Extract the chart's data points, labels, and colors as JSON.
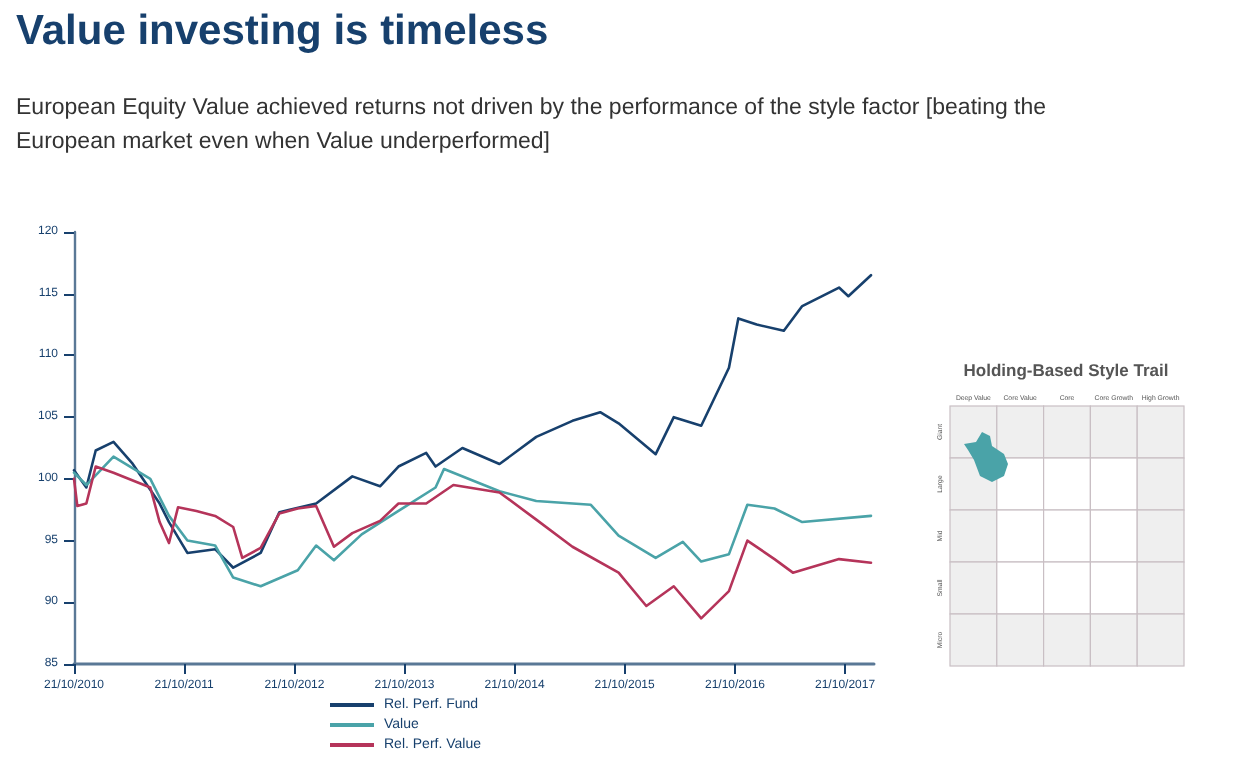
{
  "chart_data": [
    {
      "type": "line",
      "title": "Value investing is timeless",
      "subtitle": "European Equity Value achieved returns not driven by the performance of the style factor [beating the European market even when Value underperformed]",
      "xlim": [
        "2010-10-21",
        "2018-01-25"
      ],
      "xticks": [
        {
          "value": "2010-10-21",
          "label": "21/10/2010"
        },
        {
          "value": "2011-10-21",
          "label": "21/10/2011"
        },
        {
          "value": "2012-10-21",
          "label": "21/10/2012"
        },
        {
          "value": "2013-10-21",
          "label": "21/10/2013"
        },
        {
          "value": "2014-10-21",
          "label": "21/10/2014"
        },
        {
          "value": "2015-10-21",
          "label": "21/10/2015"
        },
        {
          "value": "2016-10-21",
          "label": "21/10/2016"
        },
        {
          "value": "2017-10-21",
          "label": "21/10/2017"
        }
      ],
      "ylim": [
        85,
        120
      ],
      "yticks": [
        85,
        90,
        95,
        100,
        105,
        110,
        115,
        120
      ],
      "grid": false,
      "legend": "bottom",
      "marker": "none",
      "line_style": "solid",
      "series": [
        {
          "name": "Rel. Perf. Fund",
          "color": "#17406d",
          "x": [
            "2010-10-21",
            "2010-12",
            "2011-01",
            "2011-03",
            "2011-05",
            "2011-08",
            "2011-09",
            "2011-11",
            "2012-02",
            "2012-04",
            "2012-07",
            "2012-09",
            "2013-01",
            "2013-05",
            "2013-08",
            "2013-10",
            "2014-01",
            "2014-02",
            "2014-05",
            "2014-09",
            "2015-01",
            "2015-05",
            "2015-08",
            "2015-10",
            "2016-02",
            "2016-04",
            "2016-07",
            "2016-10",
            "2016-11",
            "2017-01",
            "2017-04",
            "2017-06",
            "2017-10",
            "2017-11",
            "2018-01-15"
          ],
          "values": [
            100.7,
            99.3,
            102.3,
            103,
            101.3,
            98,
            96.5,
            94,
            94.3,
            92.8,
            94,
            97.3,
            98,
            100.2,
            99.4,
            101,
            102.1,
            101,
            102.5,
            101.2,
            103.4,
            104.7,
            105.4,
            104.5,
            102,
            105,
            104.3,
            109,
            113,
            112.5,
            112,
            114,
            115.5,
            114.8,
            116.5
          ]
        },
        {
          "name": "Value",
          "color": "#4aa3a8",
          "x": [
            "2010-10-21",
            "2010-12",
            "2011-03",
            "2011-07",
            "2011-09",
            "2011-11",
            "2012-02",
            "2012-04",
            "2012-07",
            "2012-11",
            "2013-01",
            "2013-03",
            "2013-06",
            "2013-10",
            "2014-02",
            "2014-03",
            "2014-09",
            "2015-01",
            "2015-07",
            "2015-10",
            "2016-02",
            "2016-05",
            "2016-07",
            "2016-10",
            "2016-12",
            "2017-03",
            "2017-06",
            "2018-01-15"
          ],
          "values": [
            100.5,
            99.5,
            101.8,
            100,
            97,
            95,
            94.6,
            92,
            91.3,
            92.6,
            94.6,
            93.4,
            95.5,
            97.4,
            99.3,
            100.8,
            99,
            98.2,
            97.9,
            95.4,
            93.6,
            94.9,
            93.3,
            93.9,
            97.9,
            97.6,
            96.5,
            97
          ]
        },
        {
          "name": "Rel. Perf. Value",
          "color": "#b5345a",
          "x": [
            "2010-10-21",
            "2010-11",
            "2010-12",
            "2011-01",
            "2011-03",
            "2011-07",
            "2011-08",
            "2011-09",
            "2011-10",
            "2011-12",
            "2012-02",
            "2012-04",
            "2012-05",
            "2012-07",
            "2012-09",
            "2012-11",
            "2013-01",
            "2013-03",
            "2013-05",
            "2013-08",
            "2013-10",
            "2014-01",
            "2014-04",
            "2014-09",
            "2015-01",
            "2015-05",
            "2015-10",
            "2016-01",
            "2016-04",
            "2016-07",
            "2016-10",
            "2016-12",
            "2017-03",
            "2017-05",
            "2017-10",
            "2018-01-15"
          ],
          "values": [
            100,
            97.8,
            98,
            101,
            100.5,
            99.3,
            96.5,
            94.8,
            97.7,
            97.4,
            97,
            96.1,
            93.6,
            94.4,
            97.2,
            97.6,
            97.8,
            94.5,
            95.6,
            96.6,
            98,
            98,
            99.5,
            98.9,
            96.7,
            94.5,
            92.4,
            89.7,
            91.3,
            88.7,
            90.9,
            95,
            93.5,
            92.4,
            93.5,
            93.2
          ]
        }
      ]
    },
    {
      "type": "other",
      "title": "Holding-Based Style Trail",
      "categories": [
        "Deep Value",
        "Core Value",
        "Core",
        "Core Growth",
        "High Growth"
      ],
      "y_categories": [
        "Giant",
        "Large",
        "Mid",
        "Small",
        "Micro"
      ]
    }
  ]
}
